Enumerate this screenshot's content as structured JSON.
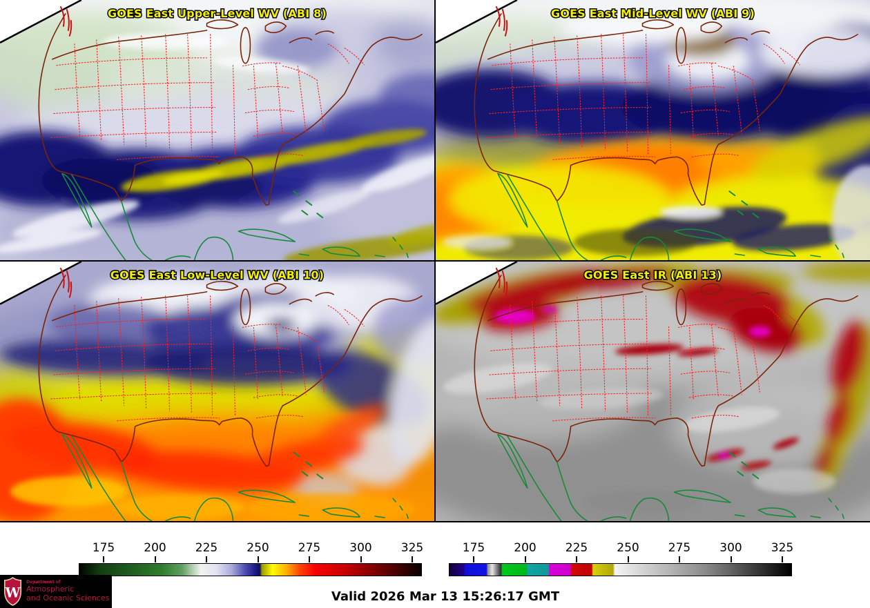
{
  "panels": [
    {
      "title": "GOES East Upper-Level WV (ABI 8)"
    },
    {
      "title": "GOES East Mid-Level WV (ABI 9)"
    },
    {
      "title": "GOES East Low-Level WV (ABI 10)"
    },
    {
      "title": "GOES East IR (ABI 13)"
    }
  ],
  "colorbars": {
    "tick_labels": [
      "175",
      "200",
      "225",
      "250",
      "275",
      "300",
      "325"
    ],
    "wv": {
      "stops": [
        {
          "p": 0,
          "c": "#000400"
        },
        {
          "p": 0.06,
          "c": "#123f12"
        },
        {
          "p": 0.14,
          "c": "#1d5a1d"
        },
        {
          "p": 0.24,
          "c": "#2e7c2e"
        },
        {
          "p": 0.3,
          "c": "#5f9f5f"
        },
        {
          "p": 0.355,
          "c": "#f0f4f0"
        },
        {
          "p": 0.4,
          "c": "#e2e2f2"
        },
        {
          "p": 0.445,
          "c": "#ababdb"
        },
        {
          "p": 0.485,
          "c": "#4d4db6"
        },
        {
          "p": 0.515,
          "c": "#1b1b84"
        },
        {
          "p": 0.528,
          "c": "#0e0e56"
        },
        {
          "p": 0.534,
          "c": "#9c9a00"
        },
        {
          "p": 0.565,
          "c": "#fdfd00"
        },
        {
          "p": 0.605,
          "c": "#ffb000"
        },
        {
          "p": 0.645,
          "c": "#ff4400"
        },
        {
          "p": 0.69,
          "c": "#f80000"
        },
        {
          "p": 0.77,
          "c": "#cc0000"
        },
        {
          "p": 0.87,
          "c": "#780000"
        },
        {
          "p": 0.96,
          "c": "#2c0000"
        },
        {
          "p": 1,
          "c": "#0a0000"
        }
      ]
    },
    "ir": {
      "stops": [
        {
          "p": 0,
          "c": "#10003c"
        },
        {
          "p": 0.02,
          "c": "#1c0060"
        },
        {
          "p": 0.042,
          "c": "#20008c"
        },
        {
          "p": 0.046,
          "c": "#0f0fd8"
        },
        {
          "p": 0.108,
          "c": "#1212e6"
        },
        {
          "p": 0.112,
          "c": "#909090"
        },
        {
          "p": 0.125,
          "c": "#e6e6e6"
        },
        {
          "p": 0.15,
          "c": "#303030"
        },
        {
          "p": 0.155,
          "c": "#00c81e"
        },
        {
          "p": 0.225,
          "c": "#00b81c"
        },
        {
          "p": 0.229,
          "c": "#12a4a4"
        },
        {
          "p": 0.289,
          "c": "#109898"
        },
        {
          "p": 0.293,
          "c": "#d800d8"
        },
        {
          "p": 0.353,
          "c": "#cc00cc"
        },
        {
          "p": 0.357,
          "c": "#d40808"
        },
        {
          "p": 0.416,
          "c": "#c00404"
        },
        {
          "p": 0.42,
          "c": "#d6ce0c"
        },
        {
          "p": 0.478,
          "c": "#b0a808"
        },
        {
          "p": 0.484,
          "c": "#f4f4f4"
        },
        {
          "p": 0.75,
          "c": "#8a8a8a"
        },
        {
          "p": 1,
          "c": "#000000"
        }
      ]
    }
  },
  "footer": {
    "valid_text": "Valid 2026 Mar 13 15:26:17 GMT"
  },
  "logo": {
    "letter": "W",
    "dept": "Department of",
    "line1": "Atmospheric",
    "line2": "and Oceanic Sciences"
  },
  "colors": {
    "title_text": "#f5ef00",
    "state_lines": "#ff2020",
    "us_border": "#7a2408",
    "coastlines": "#168a38",
    "logo_text": "#bc1642"
  }
}
